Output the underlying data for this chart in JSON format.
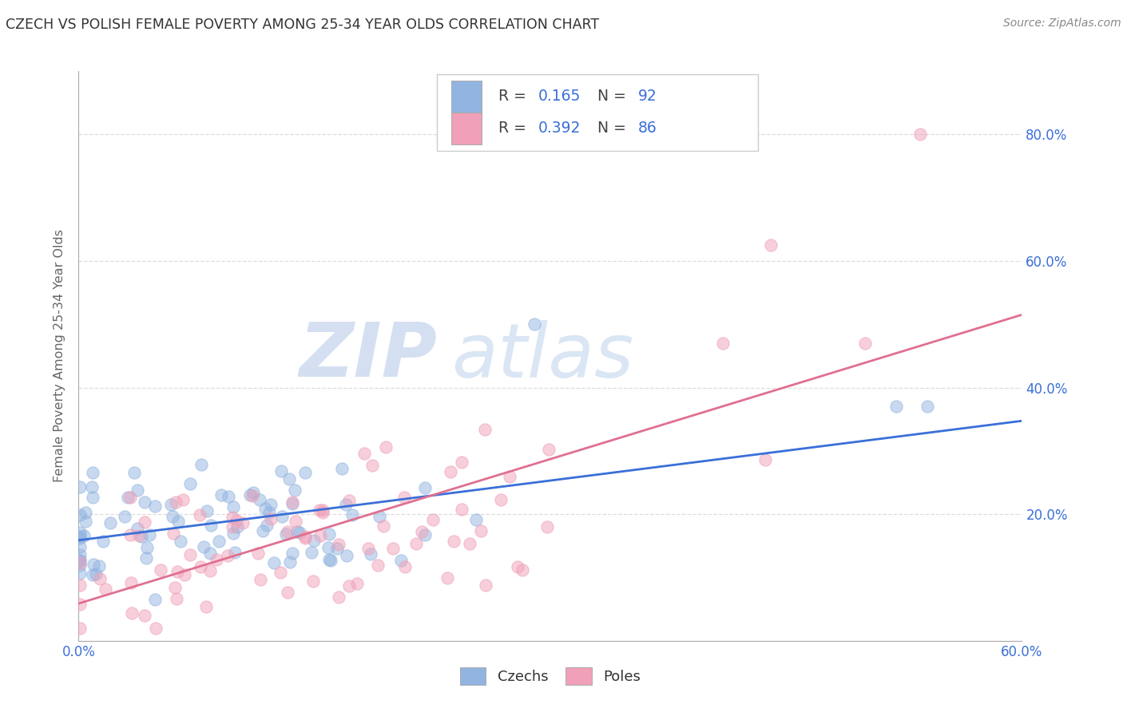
{
  "title": "CZECH VS POLISH FEMALE POVERTY AMONG 25-34 YEAR OLDS CORRELATION CHART",
  "source": "Source: ZipAtlas.com",
  "ylabel": "Female Poverty Among 25-34 Year Olds",
  "xlim": [
    0.0,
    0.6
  ],
  "ylim": [
    0.0,
    0.9
  ],
  "czech_color": "#92b4e0",
  "polish_color": "#f0a0b8",
  "czech_R": 0.165,
  "czech_N": 92,
  "polish_R": 0.392,
  "polish_N": 86,
  "legend_color": "#3a6fd8",
  "watermark_zip_color": "#b8cce8",
  "watermark_atlas_color": "#b8cce8",
  "background_color": "#ffffff",
  "grid_color": "#cccccc",
  "title_color": "#333333",
  "axis_label_color": "#666666",
  "scatter_alpha": 0.5,
  "scatter_size": 120,
  "trendline_czech_color": "#3a6fd8",
  "trendline_polish_color": "#e07090",
  "trendline_lw": 2.0,
  "tick_label_color": "#3a6fd8"
}
